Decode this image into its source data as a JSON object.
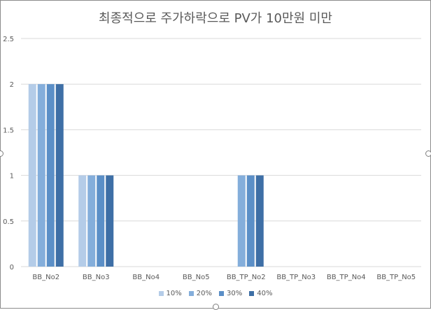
{
  "chart_data": {
    "type": "bar",
    "title": "최종적으로 주가하락으로 PV가 10만원 미만",
    "categories": [
      "BB_No2",
      "BB_No3",
      "BB_No4",
      "BB_No5",
      "BB_TP_No2",
      "BB_TP_No3",
      "BB_TP_No4",
      "BB_TP_No5"
    ],
    "series": [
      {
        "name": "10%",
        "color": "#b4cce8",
        "values": [
          2,
          1,
          0,
          0,
          0,
          0,
          0,
          0
        ]
      },
      {
        "name": "20%",
        "color": "#84aedb",
        "values": [
          2,
          1,
          0,
          0,
          1,
          0,
          0,
          0
        ]
      },
      {
        "name": "30%",
        "color": "#5b8fc7",
        "values": [
          2,
          1,
          0,
          0,
          1,
          0,
          0,
          0
        ]
      },
      {
        "name": "40%",
        "color": "#3e6fa6",
        "values": [
          2,
          1,
          0,
          0,
          1,
          0,
          0,
          0
        ]
      }
    ],
    "yticks": [
      "0",
      "0.5",
      "1",
      "1.5",
      "2",
      "2.5"
    ],
    "ylim": [
      0,
      2.5
    ],
    "grid": true,
    "legend": "bottom",
    "xlabel": "",
    "ylabel": ""
  }
}
